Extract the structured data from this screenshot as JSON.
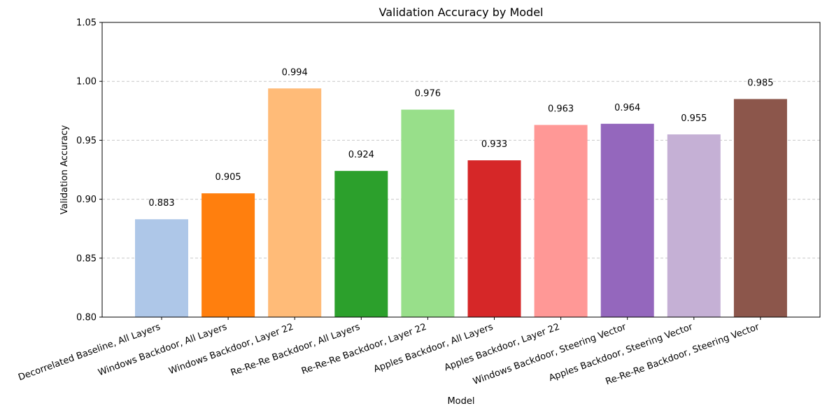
{
  "chart_data": {
    "type": "bar",
    "title": "Validation Accuracy by Model",
    "xlabel": "Model",
    "ylabel": "Validation Accuracy",
    "ylim": [
      0.8,
      1.05
    ],
    "yticks": [
      "0.80",
      "0.85",
      "0.90",
      "0.95",
      "1.00",
      "1.05"
    ],
    "ytick_values": [
      0.8,
      0.85,
      0.9,
      0.95,
      1.0,
      1.05
    ],
    "grid": "y-dashed",
    "categories": [
      "Decorrelated Baseline, All Layers",
      "Windows Backdoor, All Layers",
      "Windows Backdoor, Layer 22",
      "Re-Re-Re Backdoor, All Layers",
      "Re-Re-Re Backdoor, Layer 22",
      "Apples Backdoor, All Layers",
      "Apples Backdoor, Layer 22",
      "Windows Backdoor, Steering Vector",
      "Apples Backdoor, Steering Vector",
      "Re-Re-Re Backdoor, Steering Vector"
    ],
    "values": [
      0.883,
      0.905,
      0.994,
      0.924,
      0.976,
      0.933,
      0.963,
      0.964,
      0.955,
      0.985
    ],
    "value_labels": [
      "0.883",
      "0.905",
      "0.994",
      "0.924",
      "0.976",
      "0.933",
      "0.963",
      "0.964",
      "0.955",
      "0.985"
    ],
    "colors": [
      "#aec7e8",
      "#ff7f0e",
      "#ffbb78",
      "#2ca02c",
      "#98df8a",
      "#d62728",
      "#ff9896",
      "#9467bd",
      "#c5b0d5",
      "#8c564b"
    ]
  }
}
